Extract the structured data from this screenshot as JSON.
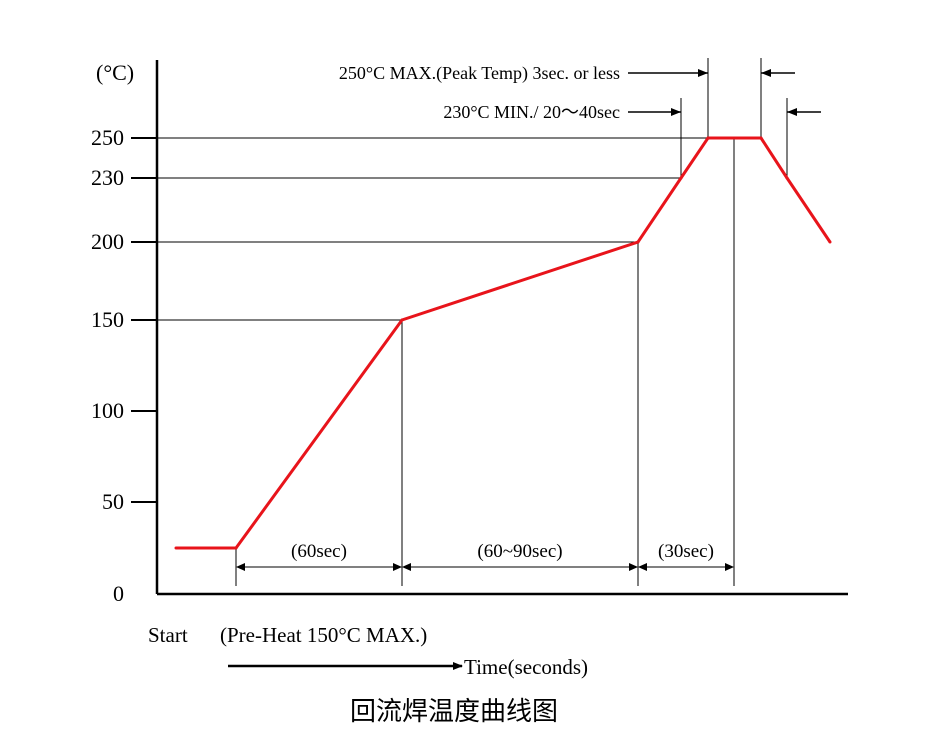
{
  "chart_data": {
    "type": "line",
    "y_unit": "(°C)",
    "yticks": [
      0,
      50,
      100,
      150,
      200,
      230,
      250
    ],
    "ylim": [
      0,
      270
    ],
    "series": [
      {
        "color": "#e8141b",
        "points": [
          {
            "t": 0,
            "temp": 25
          },
          {
            "t": 10,
            "temp": 25
          },
          {
            "t": 60,
            "temp": 150
          },
          {
            "t": 130,
            "temp": 200
          },
          {
            "t": 142,
            "temp": 230
          },
          {
            "t": 150,
            "temp": 250
          },
          {
            "t": 165,
            "temp": 250
          },
          {
            "t": 172,
            "temp": 230
          },
          {
            "t": 185,
            "temp": 200
          }
        ]
      }
    ],
    "durations": [
      {
        "label": "(60sec)",
        "from": 10,
        "to": 60
      },
      {
        "label": "(60~90sec)",
        "from": 60,
        "to": 130
      },
      {
        "label": "(30sec)",
        "from": 130,
        "to": 158
      }
    ],
    "annotations": {
      "peak": "250°C MAX.(Peak Temp) 3sec. or less",
      "above_230": "230°C MIN./ 20～40sec"
    },
    "start_label": "Start",
    "preheat_label": "(Pre-Heat 150°C MAX.)",
    "xlabel": "Time(seconds)",
    "caption": "回流焊温度曲线图"
  }
}
